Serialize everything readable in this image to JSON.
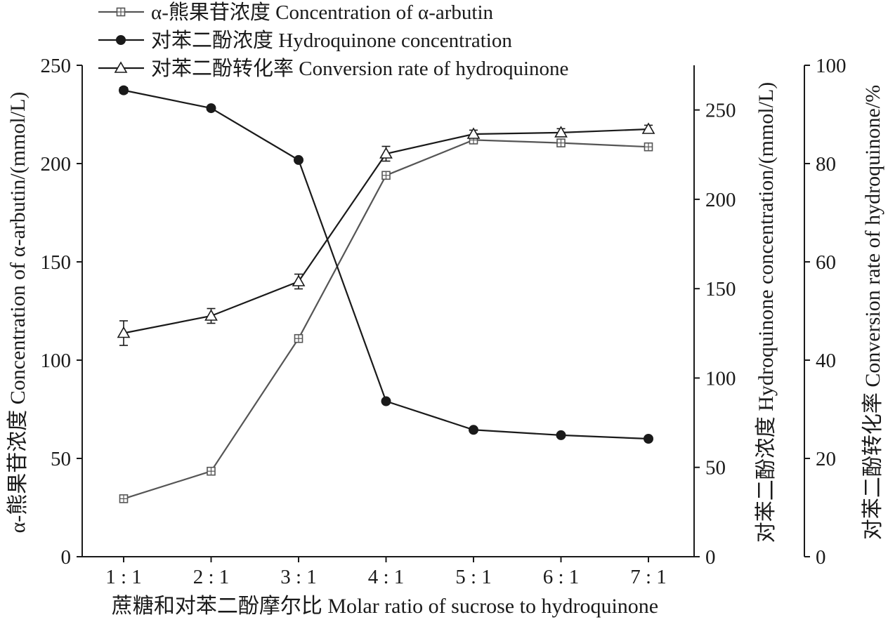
{
  "chart_data": {
    "type": "line",
    "title": "",
    "categories": [
      "1 : 1",
      "2 : 1",
      "3 : 1",
      "4 : 1",
      "5 : 1",
      "6 : 1",
      "7 : 1"
    ],
    "xlabel": "蔗糖和对苯二酚摩尔比 Molar ratio of sucrose to hydroquinone",
    "axes": {
      "left": {
        "label": "α-熊果苷浓度 Concentration of α-arbutin/(mmol/L)",
        "ylim": [
          0,
          250
        ],
        "ticks": [
          0,
          50,
          100,
          150,
          200,
          250
        ]
      },
      "right1": {
        "label": "对苯二酚浓度 Hydroquinone concentration/(mmol/L)",
        "ylim": [
          0,
          275
        ],
        "ticks": [
          0,
          50,
          100,
          150,
          200,
          250
        ]
      },
      "right2": {
        "label": "对苯二酚转化率 Conversion rate of hydroquinone/%",
        "ylim": [
          0,
          100
        ],
        "ticks": [
          0,
          20,
          40,
          60,
          80,
          100
        ]
      }
    },
    "series": [
      {
        "name": "α-熊果苷浓度 Concentration of α-arbutin",
        "axis": "left",
        "marker": "square",
        "color": "#555555",
        "values": [
          29.5,
          43.5,
          111,
          194,
          212,
          210.5,
          208.5
        ],
        "errors": [
          1.2,
          1.2,
          1.5,
          1.5,
          1.2,
          1.5,
          1.2
        ]
      },
      {
        "name": "对苯二酚浓度 Hydroquinone concentration",
        "axis": "right1",
        "marker": "circle",
        "color": "#1a1a1a",
        "values": [
          261,
          251,
          222,
          87,
          71,
          68,
          66
        ],
        "errors": [
          1.5,
          1.2,
          1.2,
          1.2,
          1.2,
          1.2,
          1.2
        ]
      },
      {
        "name": "对苯二酚转化率 Conversion rate of hydroquinone",
        "axis": "right2",
        "marker": "triangle",
        "color": "#1a1a1a",
        "values": [
          45.5,
          49,
          56,
          82,
          86,
          86.3,
          87
        ],
        "errors": [
          2.5,
          1.5,
          1.5,
          1.5,
          0.8,
          0.8,
          0.8
        ]
      }
    ],
    "legend": "top-left"
  }
}
